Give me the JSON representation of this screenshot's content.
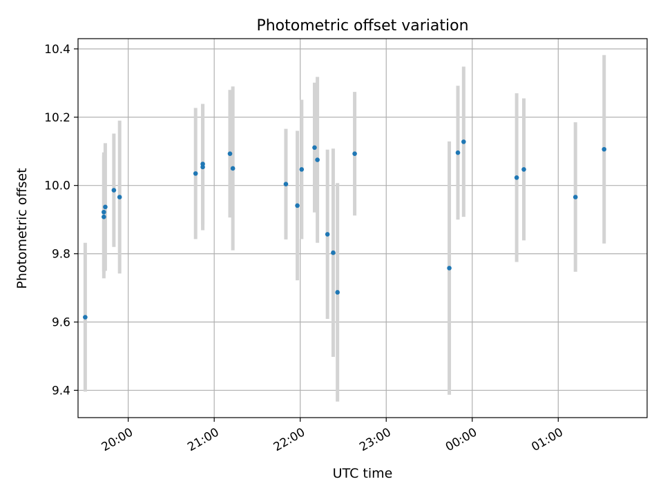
{
  "chart_data": {
    "type": "scatter",
    "title": "Photometric offset variation",
    "xlabel": "UTC time",
    "ylabel": "Photometric offset",
    "x_ticks": [
      "20:00",
      "21:00",
      "22:00",
      "23:00",
      "00:00",
      "01:00"
    ],
    "y_ticks": [
      "9.4",
      "9.6",
      "9.8",
      "10.0",
      "10.2",
      "10.4"
    ],
    "xlim": [
      "19:25",
      "02:02"
    ],
    "ylim": [
      9.32,
      10.43
    ],
    "grid": true,
    "colors": {
      "point": "#1f77b4",
      "errorbar": "#d3d3d3",
      "grid": "#b0b0b0"
    },
    "points": [
      {
        "x": "19:30",
        "y": 9.614,
        "err": 0.218
      },
      {
        "x": "19:43",
        "y": 9.922,
        "err": 0.175
      },
      {
        "x": "19:43",
        "y": 9.908,
        "err": 0.18
      },
      {
        "x": "19:44",
        "y": 9.937,
        "err": 0.187
      },
      {
        "x": "19:50",
        "y": 9.986,
        "err": 0.166
      },
      {
        "x": "19:54",
        "y": 9.966,
        "err": 0.224
      },
      {
        "x": "20:47",
        "y": 10.035,
        "err": 0.192
      },
      {
        "x": "20:52",
        "y": 10.054,
        "err": 0.185
      },
      {
        "x": "20:52",
        "y": 10.063,
        "err": 0.176
      },
      {
        "x": "21:11",
        "y": 10.093,
        "err": 0.187
      },
      {
        "x": "21:13",
        "y": 10.05,
        "err": 0.24
      },
      {
        "x": "21:50",
        "y": 10.004,
        "err": 0.162
      },
      {
        "x": "21:58",
        "y": 9.941,
        "err": 0.219
      },
      {
        "x": "22:01",
        "y": 10.047,
        "err": 0.204
      },
      {
        "x": "22:10",
        "y": 10.111,
        "err": 0.19
      },
      {
        "x": "22:12",
        "y": 10.075,
        "err": 0.243
      },
      {
        "x": "22:19",
        "y": 9.857,
        "err": 0.248
      },
      {
        "x": "22:23",
        "y": 9.803,
        "err": 0.305
      },
      {
        "x": "22:26",
        "y": 9.687,
        "err": 0.32
      },
      {
        "x": "22:38",
        "y": 10.093,
        "err": 0.181
      },
      {
        "x": "23:44",
        "y": 9.758,
        "err": 0.371
      },
      {
        "x": "23:50",
        "y": 10.096,
        "err": 0.196
      },
      {
        "x": "23:54",
        "y": 10.128,
        "err": 0.22
      },
      {
        "x": "00:31",
        "y": 10.023,
        "err": 0.247
      },
      {
        "x": "00:36",
        "y": 10.047,
        "err": 0.208
      },
      {
        "x": "01:12",
        "y": 9.966,
        "err": 0.219
      },
      {
        "x": "01:32",
        "y": 10.106,
        "err": 0.276
      }
    ]
  }
}
